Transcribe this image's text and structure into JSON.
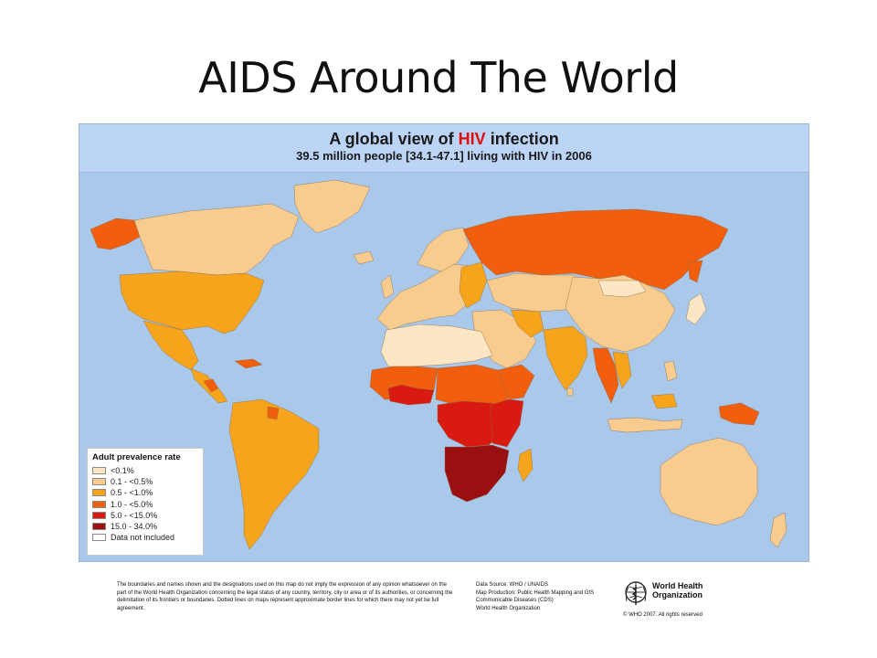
{
  "slide": {
    "title": "AIDS Around The World"
  },
  "map": {
    "title_prefix": "A global view of ",
    "title_highlight": "HIV",
    "title_suffix": " infection",
    "subtitle": "39.5 million people [34.1-47.1] living with HIV in 2006",
    "colors": {
      "ocean": "#a9c8ea",
      "header": "#bcd4f6",
      "highlight": "#e01010"
    }
  },
  "legend": {
    "title": "Adult prevalence rate",
    "items": [
      {
        "label": "<0.1%",
        "color": "#fde6c4"
      },
      {
        "label": "0.1 - <0.5%",
        "color": "#f8cc8f"
      },
      {
        "label": "0.5 - <1.0%",
        "color": "#f5a41c"
      },
      {
        "label": "1.0 - <5.0%",
        "color": "#f05e0e"
      },
      {
        "label": "5.0 - <15.0%",
        "color": "#d91a10"
      },
      {
        "label": "15.0 - 34.0%",
        "color": "#9a1010"
      },
      {
        "label": "Data not included",
        "color": "#ffffff"
      }
    ]
  },
  "footer": {
    "disclaimer": "The boundaries and names shown and the designations used on this map do not imply the expression of any opinion whatsoever on the part of the World Health Organization concerning the legal status of any country, territory, city or area or of its authorities, or concerning the delimitation of its frontiers or boundaries. Dotted lines on maps represent approximate border lines for which there may not yet be full agreement.",
    "credits": [
      "Data Source: WHO / UNAIDS",
      "Map Production: Public Health Mapping and GIS",
      "Communicable Diseases (CDS)",
      "World Health Organization"
    ],
    "who_name_line1": "World Health",
    "who_name_line2": "Organization",
    "copyright": "© WHO 2007. All rights reserved"
  }
}
